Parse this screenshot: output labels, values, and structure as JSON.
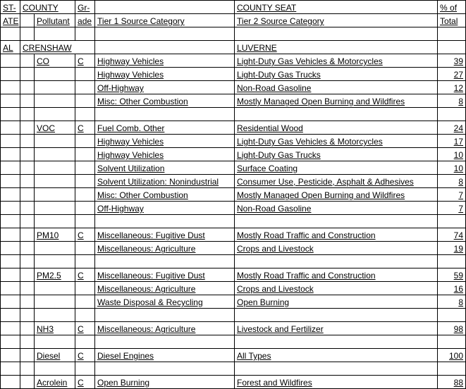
{
  "headers": {
    "r1c1": "ST-",
    "r1c2": "COUNTY",
    "r1c4": "Gr-",
    "r1c6": "COUNTY SEAT",
    "r1c7": "% of",
    "r2c1": "ATE",
    "r2c3": "Pollutant",
    "r2c4": "ade",
    "r2c5": "Tier 1 Source Category",
    "r2c6": "Tier 2 Source Category",
    "r2c7": "Total"
  },
  "state": "AL",
  "county": "CRENSHAW",
  "county_seat": "LUVERNE",
  "rows": [
    {
      "pollutant": "CO",
      "grade": "C",
      "t1": "Highway Vehicles",
      "t2": "Light-Duty Gas Vehicles & Motorcycles",
      "pct": "39"
    },
    {
      "pollutant": "",
      "grade": "",
      "t1": "Highway Vehicles",
      "t2": "Light-Duty Gas Trucks",
      "pct": "27"
    },
    {
      "pollutant": "",
      "grade": "",
      "t1": "Off-Highway",
      "t2": "Non-Road Gasoline",
      "pct": "12"
    },
    {
      "pollutant": "",
      "grade": "",
      "t1": "Misc: Other Combustion",
      "t2": "Mostly Managed Open Burning and Wildfires",
      "pct": "8"
    },
    {
      "blank": true
    },
    {
      "pollutant": "VOC",
      "grade": "C",
      "t1": "Fuel Comb. Other",
      "t2": "Residential Wood",
      "pct": "24"
    },
    {
      "pollutant": "",
      "grade": "",
      "t1": "Highway Vehicles",
      "t2": "Light-Duty Gas Vehicles & Motorcycles",
      "pct": "17"
    },
    {
      "pollutant": "",
      "grade": "",
      "t1": "Highway Vehicles",
      "t2": "Light-Duty Gas Trucks",
      "pct": "10"
    },
    {
      "pollutant": "",
      "grade": "",
      "t1": "Solvent Utilization",
      "t2": "Surface Coating",
      "pct": "10"
    },
    {
      "pollutant": "",
      "grade": "",
      "t1": "Solvent Utilization: Nonindustrial",
      "t2": "Consumer Use, Pesticide, Asphalt & Adhesives",
      "pct": "8"
    },
    {
      "pollutant": "",
      "grade": "",
      "t1": "Misc: Other Combustion",
      "t2": "Mostly Managed Open Burning and Wildfires",
      "pct": "7"
    },
    {
      "pollutant": "",
      "grade": "",
      "t1": "Off-Highway",
      "t2": "Non-Road Gasoline",
      "pct": "7"
    },
    {
      "blank": true
    },
    {
      "pollutant": "PM10",
      "grade": "C",
      "t1": "Miscellaneous: Fugitive Dust",
      "t2": "Mostly Road Traffic and Construction",
      "pct": "74"
    },
    {
      "pollutant": "",
      "grade": "",
      "t1": "Miscellaneous: Agriculture",
      "t2": "Crops and Livestock",
      "pct": "19"
    },
    {
      "blank": true
    },
    {
      "pollutant": "PM2.5",
      "grade": "C",
      "t1": "Miscellaneous: Fugitive Dust",
      "t2": "Mostly Road Traffic and Construction",
      "pct": "59"
    },
    {
      "pollutant": "",
      "grade": "",
      "t1": "Miscellaneous: Agriculture",
      "t2": "Crops and Livestock",
      "pct": "16"
    },
    {
      "pollutant": "",
      "grade": "",
      "t1": "Waste Disposal & Recycling",
      "t2": "Open Burning",
      "pct": "8"
    },
    {
      "blank": true
    },
    {
      "pollutant": "NH3",
      "grade": "C",
      "t1": "Miscellaneous: Agriculture",
      "t2": "Livestock and Fertilizer",
      "pct": "98"
    },
    {
      "blank": true
    },
    {
      "pollutant": "Diesel",
      "grade": "C",
      "t1": "Diesel Engines",
      "t2": "All Types",
      "pct": "100"
    },
    {
      "blank": true
    },
    {
      "pollutant": "Acrolein",
      "grade": "C",
      "t1": "Open Burning",
      "t2": "Forest and Wildfires",
      "pct": "88"
    }
  ]
}
